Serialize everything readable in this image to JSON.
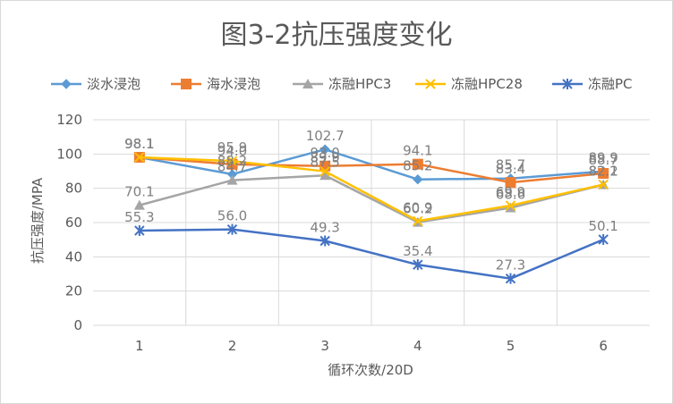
{
  "chart_data": {
    "type": "line",
    "title": "图3-2抗压强度变化",
    "xlabel": "循环次数/20D",
    "ylabel": "抗压强度/MPA",
    "ylim": [
      0,
      120
    ],
    "yticks": [
      "0",
      "20",
      "40",
      "60",
      "80",
      "100",
      "120"
    ],
    "categories": [
      "1",
      "2",
      "3",
      "4",
      "5",
      "6"
    ],
    "grid": "horizontal and vertical",
    "legend": "top",
    "series": [
      {
        "name": "淡水浸泡",
        "color": "#5B9BD5",
        "marker": "diamond",
        "values": [
          98.1,
          88.2,
          102.7,
          85.2,
          85.7,
          89.9
        ],
        "labels": [
          "98.1",
          "88.2",
          "102.7",
          "85.2",
          "85.7",
          "89.9"
        ]
      },
      {
        "name": "海水浸泡",
        "color": "#ED7D31",
        "marker": "square",
        "values": [
          98.1,
          94.0,
          93.0,
          94.1,
          83.4,
          88.7
        ],
        "labels": [
          "98.1",
          "94.0",
          "93.0",
          "94.1",
          "83.4",
          "88.7"
        ]
      },
      {
        "name": "冻融HPC3",
        "color": "#A5A5A5",
        "marker": "triangle",
        "values": [
          70.1,
          84.7,
          87.5,
          60.2,
          68.6,
          82.1
        ],
        "labels": [
          "70.1",
          "84.7",
          "87.5",
          "60.2",
          "68.6",
          "82.1"
        ]
      },
      {
        "name": "冻融HPC28",
        "color": "#FFC000",
        "marker": "x",
        "values": [
          98.1,
          95.9,
          89.9,
          60.9,
          69.9,
          82.2
        ],
        "labels": [
          "98.1",
          "95.9",
          "89.9",
          "60.9",
          "69.9",
          "82.2"
        ]
      },
      {
        "name": "冻融PC",
        "color": "#4472C4",
        "marker": "star",
        "values": [
          55.3,
          56.0,
          49.3,
          35.4,
          27.3,
          50.1
        ],
        "labels": [
          "55.3",
          "56.0",
          "49.3",
          "35.4",
          "27.3",
          "50.1"
        ]
      }
    ]
  }
}
